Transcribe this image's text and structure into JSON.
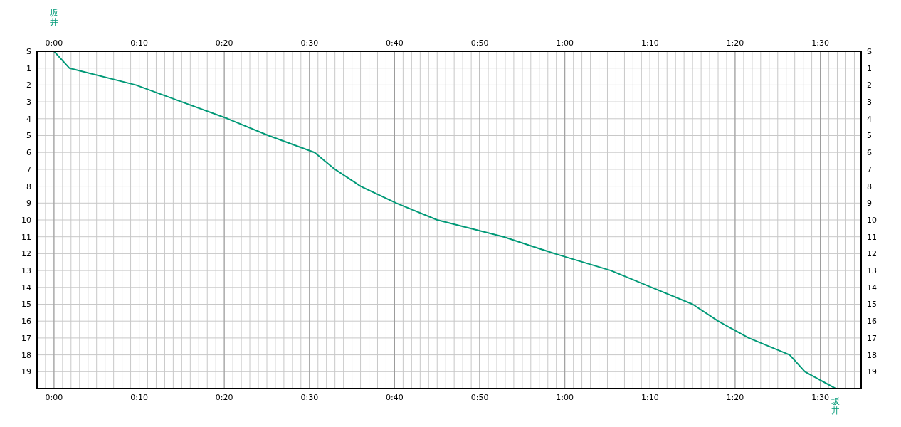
{
  "chart_data": {
    "type": "line",
    "orientation": "horizontal",
    "categories": [
      "S",
      "1",
      "2",
      "3",
      "4",
      "5",
      "6",
      "7",
      "8",
      "9",
      "10",
      "11",
      "12",
      "13",
      "14",
      "15",
      "16",
      "17",
      "18",
      "19",
      null
    ],
    "series": [
      {
        "color": "#009977",
        "values": [
          0,
          0.03,
          0.16,
          0.25,
          0.34,
          0.42,
          0.51,
          0.55,
          0.6,
          0.67,
          0.75,
          0.88,
          0.98,
          1.09,
          1.17,
          1.25,
          1.3,
          1.36,
          1.44,
          1.47,
          1.53
        ]
      }
    ],
    "xlim": [
      -0.0333,
      1.58
    ],
    "xticks": [
      {
        "value": -0.0167,
        "label": null
      },
      {
        "value": 0,
        "label": "0:00"
      },
      {
        "value": 0.0167,
        "label": null
      },
      {
        "value": 0.0333,
        "label": null
      },
      {
        "value": 0.05,
        "label": null
      },
      {
        "value": 0.0667,
        "label": null
      },
      {
        "value": 0.0833,
        "label": null
      },
      {
        "value": 0.1,
        "label": null
      },
      {
        "value": 0.1167,
        "label": null
      },
      {
        "value": 0.1333,
        "label": null
      },
      {
        "value": 0.15,
        "label": null
      },
      {
        "value": 0.1667,
        "label": "0:10"
      },
      {
        "value": 0.1833,
        "label": null
      },
      {
        "value": 0.2,
        "label": null
      },
      {
        "value": 0.2167,
        "label": null
      },
      {
        "value": 0.2333,
        "label": null
      },
      {
        "value": 0.25,
        "label": null
      },
      {
        "value": 0.2667,
        "label": null
      },
      {
        "value": 0.2833,
        "label": null
      },
      {
        "value": 0.3,
        "label": null
      },
      {
        "value": 0.3167,
        "label": null
      },
      {
        "value": 0.3333,
        "label": "0:20"
      },
      {
        "value": 0.35,
        "label": null
      },
      {
        "value": 0.3667,
        "label": null
      },
      {
        "value": 0.3833,
        "label": null
      },
      {
        "value": 0.4,
        "label": null
      },
      {
        "value": 0.4167,
        "label": null
      },
      {
        "value": 0.4333,
        "label": null
      },
      {
        "value": 0.45,
        "label": null
      },
      {
        "value": 0.4667,
        "label": null
      },
      {
        "value": 0.4833,
        "label": null
      },
      {
        "value": 0.5,
        "label": "0:30"
      },
      {
        "value": 0.5167,
        "label": null
      },
      {
        "value": 0.5333,
        "label": null
      },
      {
        "value": 0.55,
        "label": null
      },
      {
        "value": 0.5667,
        "label": null
      },
      {
        "value": 0.5833,
        "label": null
      },
      {
        "value": 0.6,
        "label": null
      },
      {
        "value": 0.6167,
        "label": null
      },
      {
        "value": 0.6333,
        "label": null
      },
      {
        "value": 0.65,
        "label": null
      },
      {
        "value": 0.6667,
        "label": "0:40"
      },
      {
        "value": 0.6833,
        "label": null
      },
      {
        "value": 0.7,
        "label": null
      },
      {
        "value": 0.7167,
        "label": null
      },
      {
        "value": 0.7333,
        "label": null
      },
      {
        "value": 0.75,
        "label": null
      },
      {
        "value": 0.7667,
        "label": null
      },
      {
        "value": 0.7833,
        "label": null
      },
      {
        "value": 0.8,
        "label": null
      },
      {
        "value": 0.8167,
        "label": null
      },
      {
        "value": 0.8333,
        "label": "0:50"
      },
      {
        "value": 0.85,
        "label": null
      },
      {
        "value": 0.8667,
        "label": null
      },
      {
        "value": 0.8833,
        "label": null
      },
      {
        "value": 0.9,
        "label": null
      },
      {
        "value": 0.9167,
        "label": null
      },
      {
        "value": 0.9333,
        "label": null
      },
      {
        "value": 0.95,
        "label": null
      },
      {
        "value": 0.9667,
        "label": null
      },
      {
        "value": 0.9833,
        "label": null
      },
      {
        "value": 1,
        "label": "1:00"
      },
      {
        "value": 1.0167,
        "label": null
      },
      {
        "value": 1.0333,
        "label": null
      },
      {
        "value": 1.05,
        "label": null
      },
      {
        "value": 1.0667,
        "label": null
      },
      {
        "value": 1.0833,
        "label": null
      },
      {
        "value": 1.1,
        "label": null
      },
      {
        "value": 1.1167,
        "label": null
      },
      {
        "value": 1.1333,
        "label": null
      },
      {
        "value": 1.15,
        "label": null
      },
      {
        "value": 1.1667,
        "label": "1:10"
      },
      {
        "value": 1.1833,
        "label": null
      },
      {
        "value": 1.2,
        "label": null
      },
      {
        "value": 1.2167,
        "label": null
      },
      {
        "value": 1.2333,
        "label": null
      },
      {
        "value": 1.25,
        "label": null
      },
      {
        "value": 1.2667,
        "label": null
      },
      {
        "value": 1.2833,
        "label": null
      },
      {
        "value": 1.3,
        "label": null
      },
      {
        "value": 1.3167,
        "label": null
      },
      {
        "value": 1.3333,
        "label": "1:20"
      },
      {
        "value": 1.35,
        "label": null
      },
      {
        "value": 1.3667,
        "label": null
      },
      {
        "value": 1.3833,
        "label": null
      },
      {
        "value": 1.4,
        "label": null
      },
      {
        "value": 1.4167,
        "label": null
      },
      {
        "value": 1.4333,
        "label": null
      },
      {
        "value": 1.45,
        "label": null
      },
      {
        "value": 1.4667,
        "label": null
      },
      {
        "value": 1.4833,
        "label": null
      },
      {
        "value": 1.5,
        "label": "1:30"
      },
      {
        "value": 1.5167,
        "label": null
      },
      {
        "value": 1.5333,
        "label": null
      },
      {
        "value": 1.55,
        "label": null
      },
      {
        "value": 1.5667,
        "label": null
      }
    ],
    "x2lim": [
      -0.0333,
      1.58
    ],
    "x2ticks": [
      {
        "value": 0,
        "label": "0:00"
      },
      {
        "value": 0.1667,
        "label": "0:10"
      },
      {
        "value": 0.3333,
        "label": "0:20"
      },
      {
        "value": 0.5,
        "label": "0:30"
      },
      {
        "value": 0.6667,
        "label": "0:40"
      },
      {
        "value": 0.8333,
        "label": "0:50"
      },
      {
        "value": 1,
        "label": "1:00"
      },
      {
        "value": 1.1667,
        "label": "1:10"
      },
      {
        "value": 1.3333,
        "label": "1:20"
      },
      {
        "value": 1.5,
        "label": "1:30"
      }
    ],
    "annotations": [
      "坂井",
      "坂井"
    ],
    "grid": true,
    "marker": "none",
    "line_style": "solid"
  }
}
